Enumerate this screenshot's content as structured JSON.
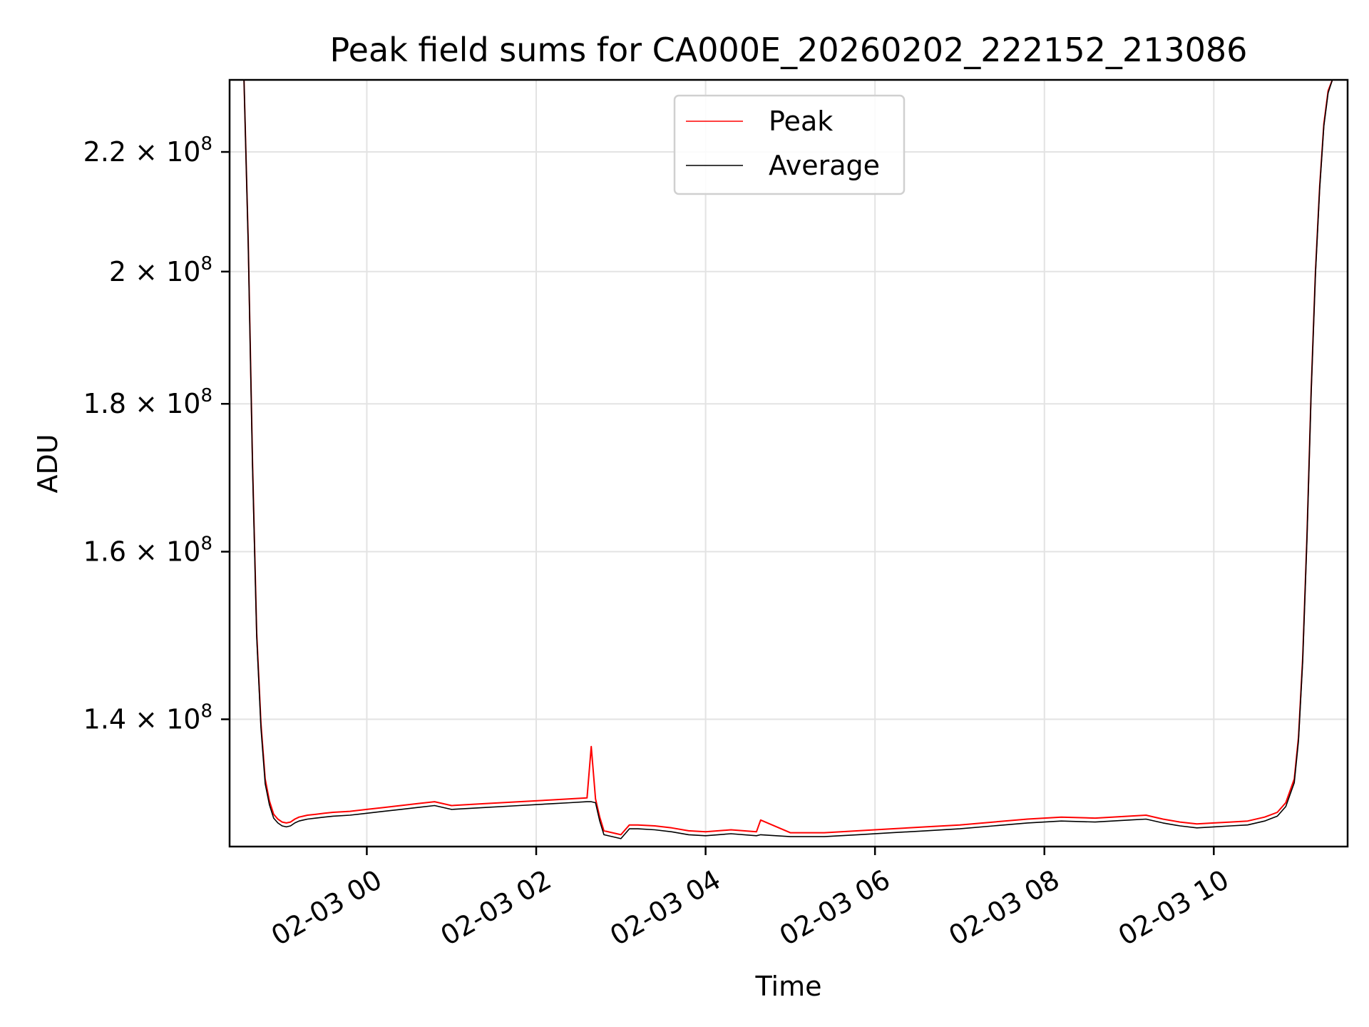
{
  "chart_data": {
    "type": "line",
    "title": "Peak field sums for CA000E_20260202_222152_213086",
    "xlabel": "Time",
    "ylabel": "ADU",
    "grid": true,
    "legend_position": "top-center",
    "x_unit": "hours since 2026-02-03 00:00",
    "xlim": [
      -1.62,
      11.58
    ],
    "ylim": [
      126500000,
      233000000
    ],
    "y_scale": "log",
    "x_ticks": [
      {
        "value": 0,
        "label": "02-03 00"
      },
      {
        "value": 2,
        "label": "02-03 02"
      },
      {
        "value": 4,
        "label": "02-03 04"
      },
      {
        "value": 6,
        "label": "02-03 06"
      },
      {
        "value": 8,
        "label": "02-03 08"
      },
      {
        "value": 10,
        "label": "02-03 10"
      }
    ],
    "y_ticks": [
      {
        "value": 140000000,
        "mantissa": "1.4",
        "base": "× 10",
        "exp": "8"
      },
      {
        "value": 160000000,
        "mantissa": "1.6",
        "base": "× 10",
        "exp": "8"
      },
      {
        "value": 180000000,
        "mantissa": "1.8",
        "base": "× 10",
        "exp": "8"
      },
      {
        "value": 200000000,
        "mantissa": "2",
        "base": "× 10",
        "exp": "8"
      },
      {
        "value": 220000000,
        "mantissa": "2.2",
        "base": "× 10",
        "exp": "8"
      }
    ],
    "series": [
      {
        "name": "Peak",
        "color": "#ff0000",
        "x": [
          -1.45,
          -1.4,
          -1.35,
          -1.3,
          -1.25,
          -1.2,
          -1.15,
          -1.1,
          -1.05,
          -1.0,
          -0.95,
          -0.9,
          -0.85,
          -0.8,
          -0.75,
          -0.7,
          -0.6,
          -0.5,
          -0.4,
          -0.2,
          0.0,
          0.2,
          0.4,
          0.6,
          0.8,
          1.0,
          1.4,
          1.8,
          2.2,
          2.4,
          2.6,
          2.65,
          2.7,
          2.75,
          2.8,
          2.9,
          3.0,
          3.1,
          3.2,
          3.4,
          3.6,
          3.8,
          4.0,
          4.3,
          4.6,
          4.65,
          5.0,
          5.4,
          5.8,
          6.2,
          6.6,
          7.0,
          7.4,
          7.8,
          8.2,
          8.6,
          9.0,
          9.2,
          9.4,
          9.6,
          9.8,
          10.0,
          10.2,
          10.4,
          10.6,
          10.75,
          10.85,
          10.95,
          11.0,
          11.05,
          11.1,
          11.15,
          11.2,
          11.25,
          11.3,
          11.35,
          11.4
        ],
        "values": [
          233000000,
          205000000,
          172000000,
          150000000,
          139500000,
          133500000,
          131200000,
          129800000,
          129300000,
          129000000,
          128900000,
          129000000,
          129300000,
          129500000,
          129600000,
          129700000,
          129800000,
          129900000,
          130000000,
          130100000,
          130300000,
          130500000,
          130700000,
          130900000,
          131100000,
          130700000,
          130900000,
          131100000,
          131300000,
          131400000,
          131500000,
          137000000,
          131400000,
          129500000,
          128100000,
          127900000,
          127700000,
          128700000,
          128700000,
          128600000,
          128400000,
          128100000,
          128000000,
          128200000,
          128000000,
          129200000,
          127900000,
          127900000,
          128100000,
          128300000,
          128500000,
          128700000,
          129000000,
          129300000,
          129500000,
          129400000,
          129600000,
          129700000,
          129300000,
          129000000,
          128800000,
          128900000,
          129000000,
          129100000,
          129500000,
          130000000,
          131000000,
          133500000,
          138000000,
          147000000,
          162000000,
          182000000,
          200000000,
          214000000,
          225000000,
          231000000,
          233000000
        ]
      },
      {
        "name": "Average",
        "color": "#000000",
        "x": [
          -1.45,
          -1.4,
          -1.35,
          -1.3,
          -1.25,
          -1.2,
          -1.15,
          -1.1,
          -1.05,
          -1.0,
          -0.95,
          -0.9,
          -0.85,
          -0.8,
          -0.75,
          -0.7,
          -0.6,
          -0.5,
          -0.4,
          -0.2,
          0.0,
          0.2,
          0.4,
          0.6,
          0.8,
          1.0,
          1.4,
          1.8,
          2.2,
          2.4,
          2.6,
          2.65,
          2.7,
          2.75,
          2.8,
          2.9,
          3.0,
          3.1,
          3.2,
          3.4,
          3.6,
          3.8,
          4.0,
          4.3,
          4.6,
          4.65,
          5.0,
          5.4,
          5.8,
          6.2,
          6.6,
          7.0,
          7.4,
          7.8,
          8.2,
          8.6,
          9.0,
          9.2,
          9.4,
          9.6,
          9.8,
          10.0,
          10.2,
          10.4,
          10.6,
          10.75,
          10.85,
          10.95,
          11.0,
          11.05,
          11.1,
          11.15,
          11.2,
          11.25,
          11.3,
          11.35,
          11.4
        ],
        "values": [
          233000000,
          204500000,
          171500000,
          149500000,
          139000000,
          133000000,
          130800000,
          129400000,
          128900000,
          128600000,
          128500000,
          128600000,
          128900000,
          129100000,
          129200000,
          129300000,
          129400000,
          129500000,
          129600000,
          129700000,
          129900000,
          130100000,
          130300000,
          130500000,
          130700000,
          130300000,
          130500000,
          130700000,
          130900000,
          131000000,
          131100000,
          131100000,
          131000000,
          129100000,
          127700000,
          127500000,
          127300000,
          128300000,
          128300000,
          128200000,
          128000000,
          127700000,
          127600000,
          127800000,
          127600000,
          127700000,
          127500000,
          127500000,
          127700000,
          127900000,
          128100000,
          128300000,
          128600000,
          128900000,
          129100000,
          129000000,
          129200000,
          129300000,
          128900000,
          128600000,
          128400000,
          128500000,
          128600000,
          128700000,
          129100000,
          129600000,
          130600000,
          133100000,
          137600000,
          146600000,
          161600000,
          181600000,
          199600000,
          213600000,
          224600000,
          230600000,
          233000000
        ]
      }
    ]
  }
}
